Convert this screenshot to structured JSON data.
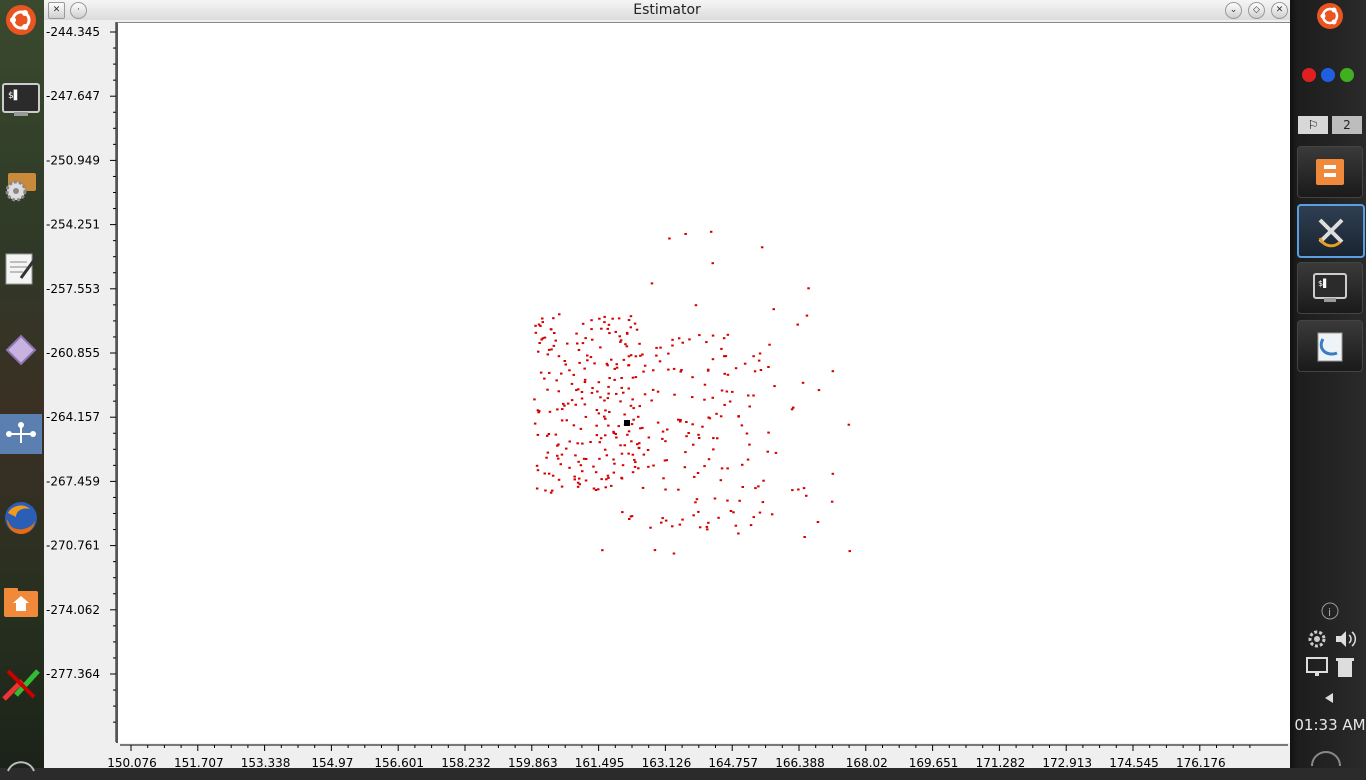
{
  "window": {
    "title": "Estimator"
  },
  "plot": {
    "y_ticks": [
      "-244.345",
      "-247.647",
      "-250.949",
      "-254.251",
      "-257.553",
      "-260.855",
      "-264.157",
      "-267.459",
      "-270.761",
      "-274.062",
      "-277.364"
    ],
    "x_ticks": [
      "150.076",
      "151.707",
      "153.338",
      "154.97",
      "156.601",
      "158.232",
      "159.863",
      "161.495",
      "163.126",
      "164.757",
      "166.388",
      "168.02",
      "169.651",
      "171.282",
      "172.913",
      "174.545",
      "176.176"
    ],
    "point_color": "#d40000",
    "estimate_color": "#000000"
  },
  "left_dock": {
    "items": [
      "ubuntu-logo-icon",
      "terminal-icon",
      "settings-icon",
      "text-editor-icon",
      "diamond-app-icon",
      "network-icon",
      "firefox-icon",
      "home-folder-icon",
      "paint-icon",
      "shutdown-icon"
    ]
  },
  "right_panel": {
    "workspace_number": "2",
    "clock": "01:33 AM",
    "tasks": [
      "file-manager-task-icon",
      "estimator-task-icon",
      "terminal-task-icon",
      "document-viewer-task-icon"
    ],
    "status_colors": {
      "red": "#e02020",
      "blue": "#2060e0",
      "green": "#40b020"
    }
  }
}
